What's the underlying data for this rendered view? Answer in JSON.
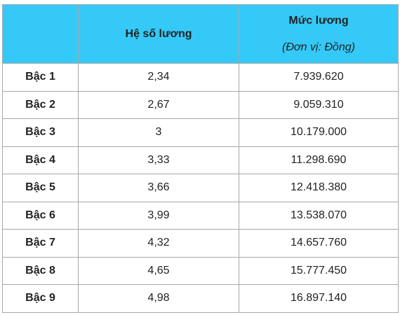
{
  "table": {
    "header": {
      "coefficient": "Hệ số lương",
      "salary": "Mức lương",
      "unit": "(Đơn vị: Đồng)"
    },
    "rows": [
      [
        "Bậc 1",
        "2,34",
        "7.939.620"
      ],
      [
        "Bậc 2",
        "2,67",
        "9.059.310"
      ],
      [
        "Bậc 3",
        "3",
        "10.179.000"
      ],
      [
        "Bậc 4",
        "3,33",
        "11.298.690"
      ],
      [
        "Bậc 5",
        "3,66",
        "12.418.380"
      ],
      [
        "Bậc 6",
        "3,99",
        "13.538.070"
      ],
      [
        "Bậc 7",
        "4,32",
        "14.657.760"
      ],
      [
        "Bậc 8",
        "4,65",
        "15.777.450"
      ],
      [
        "Bậc 9",
        "4,98",
        "16.897.140"
      ]
    ]
  }
}
